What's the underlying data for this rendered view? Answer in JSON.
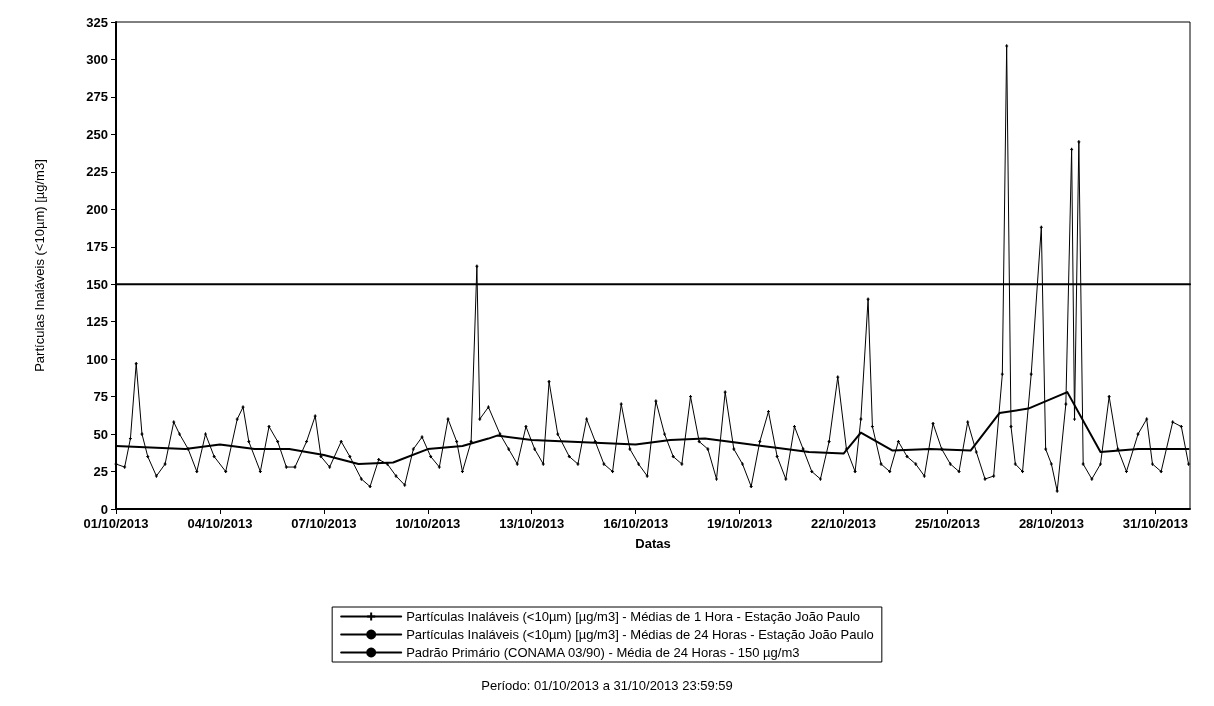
{
  "chart_data": {
    "type": "line",
    "xlabel": "Datas",
    "ylabel": "Partículas Inaláveis (<10µm) [µg/m3]",
    "annotations": [
      "Período: 01/10/2013 a 31/10/2013 23:59:59"
    ],
    "xlim": [
      "2013-10-01T00:00",
      "2013-11-01T00:00"
    ],
    "xticks": [
      {
        "value": "2013-10-01",
        "label": "01/10/2013"
      },
      {
        "value": "2013-10-04",
        "label": "04/10/2013"
      },
      {
        "value": "2013-10-07",
        "label": "07/10/2013"
      },
      {
        "value": "2013-10-10",
        "label": "10/10/2013"
      },
      {
        "value": "2013-10-13",
        "label": "13/10/2013"
      },
      {
        "value": "2013-10-16",
        "label": "16/10/2013"
      },
      {
        "value": "2013-10-19",
        "label": "19/10/2013"
      },
      {
        "value": "2013-10-22",
        "label": "22/10/2013"
      },
      {
        "value": "2013-10-25",
        "label": "25/10/2013"
      },
      {
        "value": "2013-10-28",
        "label": "28/10/2013"
      },
      {
        "value": "2013-10-31",
        "label": "31/10/2013"
      }
    ],
    "ylim": [
      0,
      325
    ],
    "yticks": [
      0,
      25,
      50,
      75,
      100,
      125,
      150,
      175,
      200,
      225,
      250,
      275,
      300,
      325
    ],
    "grid": false,
    "legend": "bottom",
    "series": [
      {
        "name": "Partículas Inaláveis (<10µm) [µg/m3] - Médias de 1 Hora - Estação João Paulo",
        "color": "#000000",
        "marker": "cross",
        "x": [
          "2013-10-01T00:00",
          "2013-10-01T06:00",
          "2013-10-01T10:00",
          "2013-10-01T14:00",
          "2013-10-01T18:00",
          "2013-10-01T22:00",
          "2013-10-02T04:00",
          "2013-10-02T10:00",
          "2013-10-02T16:00",
          "2013-10-02T20:00",
          "2013-10-03T02:00",
          "2013-10-03T08:00",
          "2013-10-03T14:00",
          "2013-10-03T20:00",
          "2013-10-04T04:00",
          "2013-10-04T12:00",
          "2013-10-04T16:00",
          "2013-10-04T20:00",
          "2013-10-05T04:00",
          "2013-10-05T10:00",
          "2013-10-05T16:00",
          "2013-10-05T22:00",
          "2013-10-06T04:00",
          "2013-10-06T12:00",
          "2013-10-06T18:00",
          "2013-10-06T22:00",
          "2013-10-07T04:00",
          "2013-10-07T12:00",
          "2013-10-07T18:00",
          "2013-10-08T02:00",
          "2013-10-08T08:00",
          "2013-10-08T14:00",
          "2013-10-08T20:00",
          "2013-10-09T02:00",
          "2013-10-09T08:00",
          "2013-10-09T14:00",
          "2013-10-09T20:00",
          "2013-10-10T02:00",
          "2013-10-10T08:00",
          "2013-10-10T14:00",
          "2013-10-10T20:00",
          "2013-10-11T00:00",
          "2013-10-11T06:00",
          "2013-10-11T10:00",
          "2013-10-11T12:00",
          "2013-10-11T18:00",
          "2013-10-12T02:00",
          "2013-10-12T08:00",
          "2013-10-12T14:00",
          "2013-10-12T20:00",
          "2013-10-13T02:00",
          "2013-10-13T08:00",
          "2013-10-13T12:00",
          "2013-10-13T18:00",
          "2013-10-14T02:00",
          "2013-10-14T08:00",
          "2013-10-14T14:00",
          "2013-10-14T20:00",
          "2013-10-15T02:00",
          "2013-10-15T08:00",
          "2013-10-15T14:00",
          "2013-10-15T20:00",
          "2013-10-16T02:00",
          "2013-10-16T08:00",
          "2013-10-16T14:00",
          "2013-10-16T20:00",
          "2013-10-17T02:00",
          "2013-10-17T08:00",
          "2013-10-17T14:00",
          "2013-10-17T20:00",
          "2013-10-18T02:00",
          "2013-10-18T08:00",
          "2013-10-18T14:00",
          "2013-10-18T20:00",
          "2013-10-19T02:00",
          "2013-10-19T08:00",
          "2013-10-19T14:00",
          "2013-10-19T20:00",
          "2013-10-20T02:00",
          "2013-10-20T08:00",
          "2013-10-20T14:00",
          "2013-10-20T20:00",
          "2013-10-21T02:00",
          "2013-10-21T08:00",
          "2013-10-21T14:00",
          "2013-10-21T20:00",
          "2013-10-22T02:00",
          "2013-10-22T08:00",
          "2013-10-22T12:00",
          "2013-10-22T17:00",
          "2013-10-22T20:00",
          "2013-10-23T02:00",
          "2013-10-23T08:00",
          "2013-10-23T14:00",
          "2013-10-23T20:00",
          "2013-10-24T02:00",
          "2013-10-24T08:00",
          "2013-10-24T14:00",
          "2013-10-24T20:00",
          "2013-10-25T02:00",
          "2013-10-25T08:00",
          "2013-10-25T14:00",
          "2013-10-25T20:00",
          "2013-10-26T02:00",
          "2013-10-26T08:00",
          "2013-10-26T14:00",
          "2013-10-26T17:00",
          "2013-10-26T20:00",
          "2013-10-26T23:00",
          "2013-10-27T04:00",
          "2013-10-27T10:00",
          "2013-10-27T17:00",
          "2013-10-27T20:00",
          "2013-10-28T00:00",
          "2013-10-28T04:00",
          "2013-10-28T10:00",
          "2013-10-28T14:00",
          "2013-10-28T16:00",
          "2013-10-28T19:00",
          "2013-10-28T22:00",
          "2013-10-29T04:00",
          "2013-10-29T10:00",
          "2013-10-29T16:00",
          "2013-10-29T22:00",
          "2013-10-30T04:00",
          "2013-10-30T12:00",
          "2013-10-30T18:00",
          "2013-10-30T22:00",
          "2013-10-31T04:00",
          "2013-10-31T12:00",
          "2013-10-31T18:00",
          "2013-10-31T23:00"
        ],
        "values": [
          30,
          28,
          47,
          97,
          50,
          35,
          22,
          30,
          58,
          50,
          40,
          25,
          50,
          35,
          25,
          60,
          68,
          45,
          25,
          55,
          45,
          28,
          28,
          45,
          62,
          35,
          28,
          45,
          35,
          20,
          15,
          33,
          30,
          22,
          16,
          40,
          48,
          35,
          28,
          60,
          45,
          25,
          45,
          162,
          60,
          68,
          50,
          40,
          30,
          55,
          40,
          30,
          85,
          50,
          35,
          30,
          60,
          45,
          30,
          25,
          70,
          40,
          30,
          22,
          72,
          50,
          35,
          30,
          75,
          45,
          40,
          20,
          78,
          40,
          30,
          15,
          45,
          65,
          35,
          20,
          55,
          40,
          25,
          20,
          45,
          88,
          40,
          25,
          60,
          140,
          55,
          30,
          25,
          45,
          35,
          30,
          22,
          57,
          40,
          30,
          25,
          58,
          38,
          20,
          22,
          90,
          309,
          55,
          30,
          25,
          90,
          188,
          40,
          30,
          12,
          70,
          240,
          60,
          245,
          30,
          20,
          30,
          75,
          40,
          25,
          50,
          60,
          30,
          25,
          58,
          55,
          30
        ]
      },
      {
        "name": "Partículas Inaláveis (<10µm) [µg/m3] - Médias de 24 Horas - Estação João Paulo",
        "color": "#000000",
        "marker": "none",
        "x": [
          "2013-10-01T00:00",
          "2013-10-02T00:00",
          "2013-10-03T00:00",
          "2013-10-04T00:00",
          "2013-10-05T00:00",
          "2013-10-06T00:00",
          "2013-10-07T00:00",
          "2013-10-08T00:00",
          "2013-10-09T00:00",
          "2013-10-10T00:00",
          "2013-10-11T00:00",
          "2013-10-11T18:00",
          "2013-10-12T00:00",
          "2013-10-13T00:00",
          "2013-10-14T00:00",
          "2013-10-15T00:00",
          "2013-10-16T00:00",
          "2013-10-17T00:00",
          "2013-10-18T00:00",
          "2013-10-19T00:00",
          "2013-10-20T00:00",
          "2013-10-21T00:00",
          "2013-10-22T00:00",
          "2013-10-22T12:00",
          "2013-10-23T10:00",
          "2013-10-24T12:00",
          "2013-10-25T16:00",
          "2013-10-26T12:00",
          "2013-10-27T08:00",
          "2013-10-28T11:00",
          "2013-10-29T10:00",
          "2013-10-30T12:00",
          "2013-10-31T23:00"
        ],
        "values": [
          42,
          41,
          40,
          43,
          40,
          40,
          36,
          30,
          31,
          40,
          42,
          47,
          49,
          46,
          45,
          44,
          43,
          46,
          47,
          44,
          41,
          38,
          37,
          51,
          39,
          40,
          39,
          64,
          67,
          78,
          38,
          40,
          40
        ]
      },
      {
        "name": "Padrão Primário (CONAMA 03/90) - Média de 24 Horas - 150 µg/m3",
        "color": "#000000",
        "marker": "none",
        "x": [
          "2013-10-01T00:00",
          "2013-11-01T00:00"
        ],
        "values": [
          150,
          150
        ]
      }
    ]
  }
}
